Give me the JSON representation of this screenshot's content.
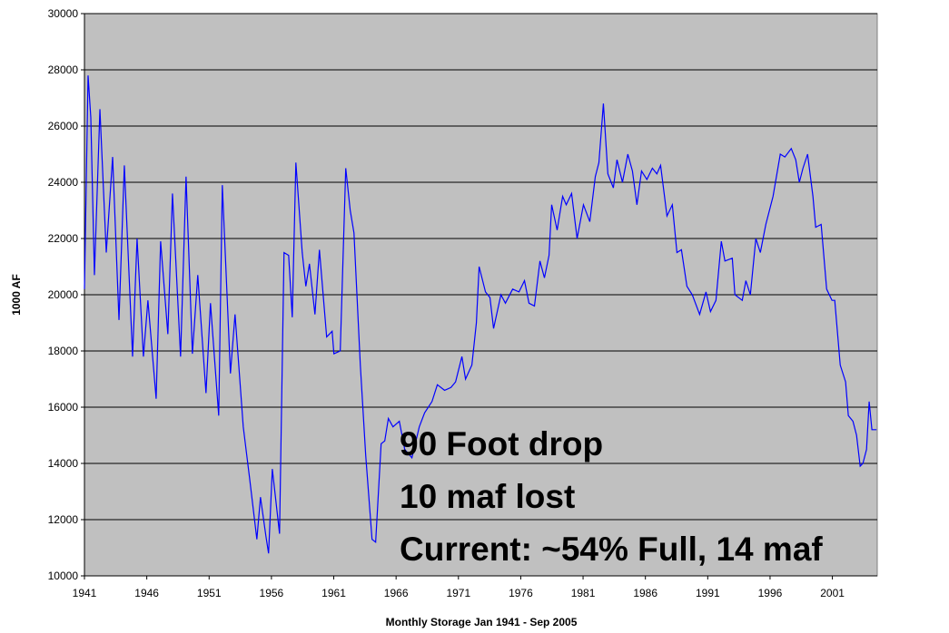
{
  "chart_data": {
    "type": "line",
    "ylabel": "1000 AF",
    "xlabel": "Monthly Storage  Jan 1941 - Sep 2005",
    "annotations": [
      "90 Foot drop",
      "10 maf lost",
      "Current: ~54% Full, 14 maf"
    ],
    "color": "#0000ff",
    "background": "#c0c0c0",
    "grid": true,
    "xlim": [
      1941,
      2004.6
    ],
    "xticks": [
      1941,
      1946,
      1951,
      1956,
      1961,
      1966,
      1971,
      1976,
      1981,
      1986,
      1991,
      1996,
      2001
    ],
    "ylim": [
      10000,
      30000
    ],
    "yticks": [
      10000,
      12000,
      14000,
      16000,
      18000,
      20000,
      22000,
      24000,
      26000,
      28000,
      30000
    ],
    "x": [
      1941.0,
      1941.29,
      1941.51,
      1941.8,
      1942.24,
      1942.75,
      1943.26,
      1943.77,
      1944.2,
      1944.86,
      1945.22,
      1945.73,
      1946.09,
      1946.75,
      1947.11,
      1947.69,
      1948.06,
      1948.71,
      1949.15,
      1949.66,
      1950.09,
      1950.75,
      1951.11,
      1951.77,
      1952.06,
      1952.71,
      1953.08,
      1953.74,
      1954.24,
      1954.83,
      1955.12,
      1955.56,
      1955.77,
      1956.07,
      1956.65,
      1957.01,
      1957.38,
      1957.67,
      1957.96,
      1958.47,
      1958.76,
      1959.05,
      1959.49,
      1959.85,
      1960.43,
      1960.87,
      1961.01,
      1961.52,
      1961.96,
      1962.32,
      1962.62,
      1963.13,
      1963.56,
      1964.07,
      1964.36,
      1964.8,
      1965.09,
      1965.38,
      1965.75,
      1966.26,
      1966.69,
      1967.27,
      1967.86,
      1968.29,
      1968.88,
      1969.31,
      1969.89,
      1970.4,
      1970.77,
      1971.28,
      1971.57,
      1972.08,
      1972.44,
      1972.66,
      1973.17,
      1973.53,
      1973.82,
      1974.41,
      1974.77,
      1975.35,
      1975.86,
      1976.3,
      1976.66,
      1977.1,
      1977.54,
      1977.9,
      1978.27,
      1978.48,
      1978.92,
      1979.36,
      1979.65,
      1980.08,
      1980.52,
      1981.03,
      1981.54,
      1981.98,
      1982.27,
      1982.63,
      1982.99,
      1983.43,
      1983.72,
      1984.16,
      1984.59,
      1984.96,
      1985.32,
      1985.69,
      1986.12,
      1986.56,
      1986.92,
      1987.22,
      1987.73,
      1988.16,
      1988.53,
      1988.89,
      1989.33,
      1989.76,
      1990.35,
      1990.86,
      1991.22,
      1991.66,
      1992.09,
      1992.38,
      1992.97,
      1993.18,
      1993.77,
      1994.06,
      1994.42,
      1994.86,
      1995.22,
      1995.66,
      1996.24,
      1996.82,
      1997.19,
      1997.7,
      1998.06,
      1998.35,
      1998.64,
      1999.01,
      1999.44,
      1999.66,
      2000.1,
      2000.54,
      2000.97,
      2001.19,
      2001.63,
      2002.06,
      2002.28,
      2002.65,
      2002.94,
      2003.23,
      2003.45,
      2003.74,
      2003.95,
      2004.17,
      2004.54
    ],
    "values": [
      20200,
      27800,
      26300,
      20700,
      26600,
      21500,
      24900,
      19100,
      24600,
      17800,
      22000,
      17800,
      19800,
      16300,
      21900,
      18600,
      23600,
      17800,
      24200,
      17900,
      20700,
      16500,
      19700,
      15700,
      23900,
      17200,
      19300,
      15300,
      13500,
      11300,
      12800,
      11400,
      10800,
      13800,
      11500,
      21500,
      21400,
      19200,
      24700,
      21500,
      20300,
      21100,
      19300,
      21600,
      18500,
      18700,
      17900,
      18000,
      24500,
      23000,
      22200,
      17500,
      14300,
      11300,
      11200,
      14700,
      14800,
      15600,
      15300,
      15500,
      14500,
      14200,
      15300,
      15800,
      16200,
      16800,
      16600,
      16700,
      16900,
      17800,
      17000,
      17500,
      19000,
      21000,
      20100,
      19900,
      18800,
      20000,
      19700,
      20200,
      20100,
      20500,
      19700,
      19600,
      21200,
      20600,
      21400,
      23200,
      22300,
      23500,
      23200,
      23600,
      22000,
      23200,
      22600,
      24200,
      24700,
      26800,
      24300,
      23800,
      24800,
      24000,
      25000,
      24400,
      23200,
      24400,
      24100,
      24500,
      24300,
      24600,
      22800,
      23200,
      21500,
      21600,
      20300,
      20000,
      19300,
      20100,
      19400,
      19800,
      21900,
      21200,
      21300,
      20000,
      19800,
      20500,
      20000,
      22000,
      21500,
      22500,
      23500,
      25000,
      24900,
      25200,
      24800,
      24000,
      24500,
      25000,
      23500,
      22400,
      22500,
      20200,
      19800,
      19800,
      17500,
      16900,
      15700,
      15500,
      15000,
      13900,
      14000,
      14500,
      16200,
      15200,
      15200
    ]
  }
}
